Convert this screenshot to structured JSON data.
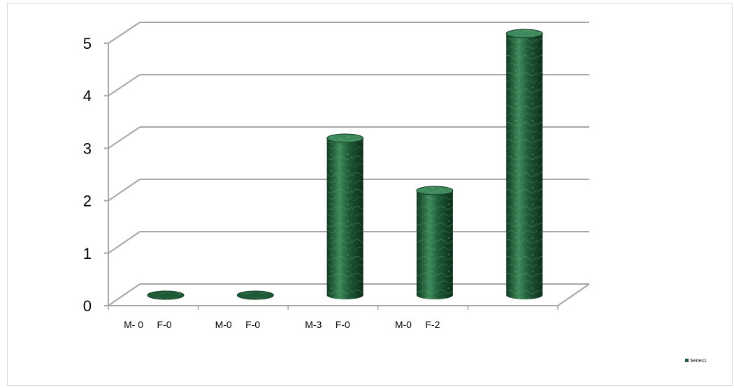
{
  "chart_data": {
    "type": "bar",
    "style": "3d-cylinder",
    "categories": [
      "M- 0     F-0",
      "M-0     F-0",
      "M-3     F-0",
      "M-0     F-2",
      ""
    ],
    "series": [
      {
        "name": "Series1",
        "values": [
          0,
          0,
          3,
          2,
          5
        ]
      }
    ],
    "ylim": [
      0,
      5
    ],
    "yticks": [
      "0",
      "1",
      "2",
      "3",
      "4",
      "5"
    ],
    "grid": true,
    "legend": "bottom-right",
    "colors": {
      "bar": "#1e5a36",
      "bar_light": "#3f8a5c",
      "bar_dark": "#0f3a20",
      "grid": "#a6a6a6"
    }
  }
}
